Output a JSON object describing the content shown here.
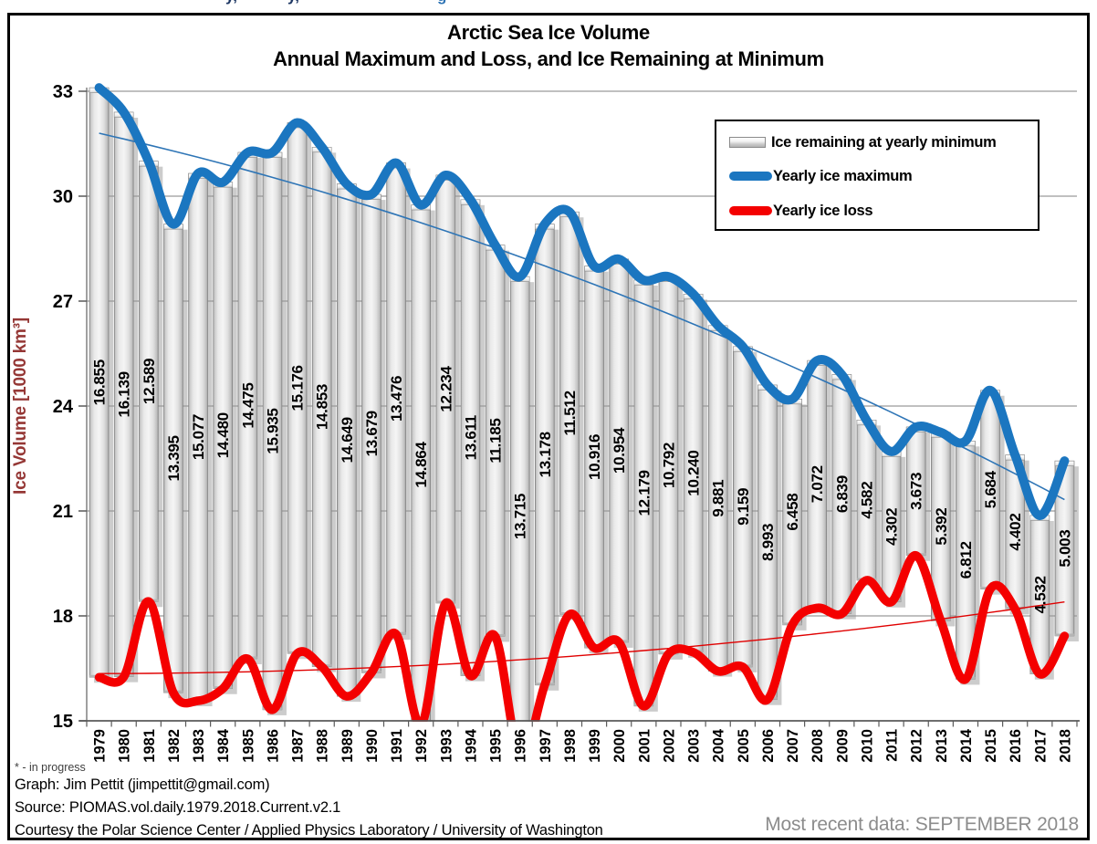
{
  "top_cropped_text": {
    "fragments": [
      {
        "text": "y,",
        "x": 247,
        "color": "#1F3864"
      },
      {
        "text": "y,",
        "x": 315,
        "color": "#1F3864"
      },
      {
        "text": "g",
        "x": 479,
        "color": "#2E74B5"
      }
    ]
  },
  "title": {
    "line1": "Arctic Sea Ice Volume",
    "line2": "Annual Maximum and Loss, and Ice Remaining at Minimum"
  },
  "legend": {
    "items": [
      {
        "label": "Ice remaining at yearly minimum",
        "swatch": "bar",
        "color": "#d9d9d9"
      },
      {
        "label": "Yearly ice maximum",
        "swatch": "line",
        "color": "#1B76C0"
      },
      {
        "label": "Yearly ice loss",
        "swatch": "line",
        "color": "#F40000"
      }
    ]
  },
  "y_axis": {
    "label": "Ice Volume [1000 km³]",
    "label_color": "#953735",
    "ticks": [
      15,
      18,
      21,
      24,
      27,
      30,
      33
    ]
  },
  "footer": {
    "note": "* - in progress",
    "graph_credit": "Graph: Jim Pettit (jimpettit@gmail.com)",
    "source": "Source: PIOMAS.vol.daily.1979.2018.Current.v2.1",
    "courtesy": "Courtesy the Polar Science Center / Applied Physics Laboratory / University of Washington",
    "most_recent": "Most recent data: SEPTEMBER 2018"
  },
  "chart_data": {
    "type": "bar",
    "title": "Arctic Sea Ice Volume — Annual Maximum and Loss, and Ice Remaining at Minimum",
    "xlabel": "",
    "ylabel": "Ice Volume [1000 km³]",
    "ylim": [
      15,
      33
    ],
    "yticks": [
      15,
      18,
      21,
      24,
      27,
      30,
      33
    ],
    "grid": true,
    "legend_position": "top-right",
    "categories": [
      1979,
      1980,
      1981,
      1982,
      1983,
      1984,
      1985,
      1986,
      1987,
      1988,
      1989,
      1990,
      1991,
      1992,
      1993,
      1994,
      1995,
      1996,
      1997,
      1998,
      1999,
      2000,
      2001,
      2002,
      2003,
      2004,
      2005,
      2006,
      2007,
      2008,
      2009,
      2010,
      2011,
      2012,
      2013,
      2014,
      2015,
      2016,
      2017,
      2018
    ],
    "series": [
      {
        "name": "Ice remaining at yearly minimum",
        "type": "bar",
        "values": [
          16.855,
          16.139,
          12.589,
          13.395,
          15.077,
          14.48,
          14.475,
          15.935,
          15.176,
          14.853,
          14.649,
          13.679,
          13.476,
          14.864,
          12.234,
          13.611,
          11.185,
          13.715,
          13.178,
          11.512,
          10.916,
          10.954,
          12.179,
          10.792,
          10.24,
          9.881,
          9.159,
          8.993,
          6.458,
          7.072,
          6.839,
          4.582,
          4.302,
          3.673,
          5.392,
          6.812,
          5.684,
          4.402,
          4.532,
          5.003
        ]
      },
      {
        "name": "Yearly ice maximum",
        "type": "line",
        "color": "#1B76C0",
        "values": [
          33.1,
          32.4,
          31.0,
          29.2,
          30.65,
          30.4,
          31.25,
          31.25,
          32.1,
          31.4,
          30.35,
          30.05,
          30.95,
          29.75,
          30.6,
          29.9,
          28.6,
          27.7,
          29.2,
          29.55,
          28.0,
          28.2,
          27.6,
          27.7,
          27.2,
          26.3,
          25.7,
          24.6,
          24.2,
          25.3,
          24.9,
          23.6,
          22.7,
          23.4,
          23.25,
          23.0,
          24.45,
          22.6,
          20.87,
          22.43
        ]
      },
      {
        "name": "Yearly ice loss",
        "type": "line",
        "color": "#F40000",
        "values": [
          16.25,
          16.26,
          18.41,
          15.81,
          15.57,
          15.92,
          16.78,
          15.32,
          16.92,
          16.55,
          15.7,
          16.37,
          17.47,
          14.89,
          18.37,
          16.29,
          17.42,
          13.99,
          16.02,
          18.04,
          17.08,
          17.25,
          15.42,
          16.91,
          16.96,
          16.42,
          16.54,
          15.61,
          17.74,
          18.23,
          18.06,
          19.02,
          18.4,
          19.73,
          17.86,
          16.19,
          18.77,
          18.2,
          16.34,
          17.43
        ]
      }
    ],
    "trend_lines": [
      {
        "series": "Yearly ice maximum",
        "shape": "quadratic",
        "color": "#2E75B6",
        "coeffs": {
          "c": 31.8,
          "b": -0.161,
          "a": -0.00276
        }
      },
      {
        "series": "Yearly ice loss",
        "shape": "quadratic",
        "color": "#E00000",
        "coeffs": {
          "c": 16.35,
          "b": 0.00066,
          "a": 0.001331
        }
      }
    ],
    "bar_note": "bar top = yearly maximum, bar bottom = yearly loss, bar length = ice remaining at minimum"
  }
}
